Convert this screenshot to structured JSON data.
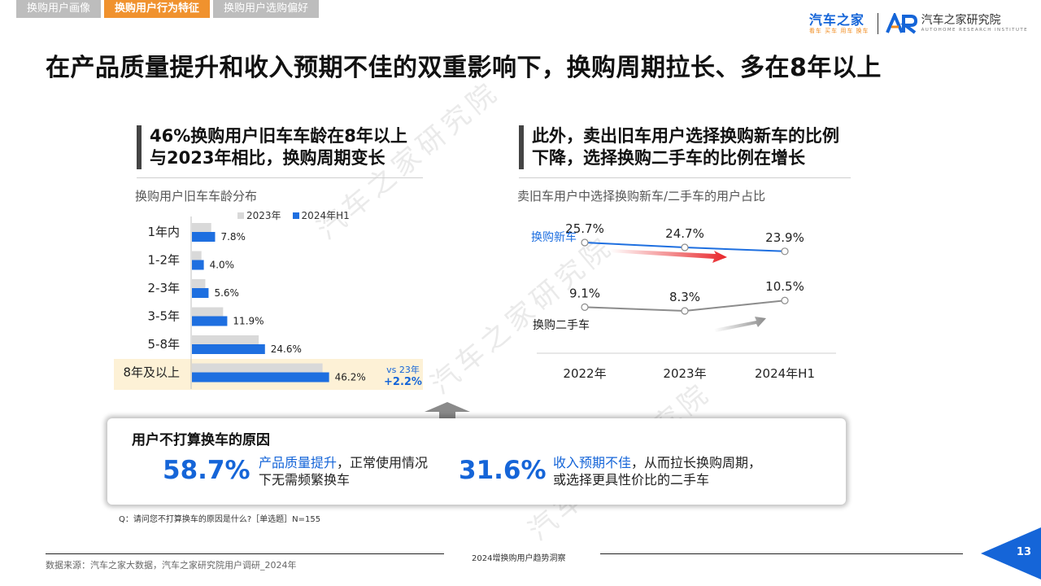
{
  "tabs": [
    "换购用户画像",
    "换购用户行为特征",
    "换购用户选购偏好"
  ],
  "logo": {
    "brand": "汽车之家",
    "brand_sub": "看车 买车 用车 换车",
    "institute": "汽车之家研究院",
    "institute_en": "AUTOHOME RESEARCH INSTITUTE"
  },
  "main_title": "在产品质量提升和收入预期不佳的双重影响下，换购周期拉长、多在8年以上",
  "left_panel": {
    "heading_line1": "46%换购用户旧车车龄在8年以上",
    "heading_line2": "与2023年相比，换购周期变长",
    "subtitle": "换购用户旧车车龄分布",
    "vs_label": "vs 23年",
    "vs_delta": "+2.2%"
  },
  "right_panel": {
    "heading_line1": "此外，卖出旧车用户选择换购新车的比例",
    "heading_line2": "下降，选择换购二手车的比例在增长",
    "subtitle": "卖旧车用户中选择换购新车/二手车的用户占比"
  },
  "chart_data": [
    {
      "type": "bar",
      "orientation": "horizontal",
      "categories": [
        "1年内",
        "1-2年",
        "2-3年",
        "3-5年",
        "5-8年",
        "8年及以上"
      ],
      "series": [
        {
          "name": "2023年",
          "color": "#d9d9d9",
          "values": [
            6.5,
            3.2,
            4.5,
            10.5,
            22.5,
            44.0
          ]
        },
        {
          "name": "2024年H1",
          "color": "#1e6fe0",
          "values": [
            7.8,
            4.0,
            5.6,
            11.9,
            24.6,
            46.2
          ]
        }
      ],
      "data_labels": [
        "7.8%",
        "4.0%",
        "5.6%",
        "11.9%",
        "24.6%",
        "46.2%"
      ],
      "legend": "top"
    },
    {
      "type": "line",
      "categories": [
        "2022年",
        "2023年",
        "2024年H1"
      ],
      "series": [
        {
          "name": "换购新车",
          "color": "#1e6fe0",
          "values": [
            25.7,
            24.7,
            23.9
          ],
          "labels": [
            "25.7%",
            "24.7%",
            "23.9%"
          ]
        },
        {
          "name": "换购二手车",
          "color": "#8c8c8c",
          "values": [
            9.1,
            8.3,
            10.5
          ],
          "labels": [
            "9.1%",
            "8.3%",
            "10.5%"
          ]
        }
      ]
    }
  ],
  "reason_box": {
    "title": "用户不打算换车的原因",
    "items": [
      {
        "value": "58.7%",
        "highlight": "产品质量提升",
        "text1": "，正常使用情况",
        "text2": "下无需频繁换车"
      },
      {
        "value": "31.6%",
        "highlight": "收入预期不佳",
        "text1": "，从而拉长换购周期，",
        "text2": "或选择更具性价比的二手车"
      }
    ]
  },
  "question": "Q：请问您不打算换车的原因是什么?［单选题］N=155",
  "footer_center": "2024增换购用户趋势洞察",
  "source": "数据来源：汽车之家大数据，汽车之家研究院用户调研_2024年",
  "page_number": "13"
}
